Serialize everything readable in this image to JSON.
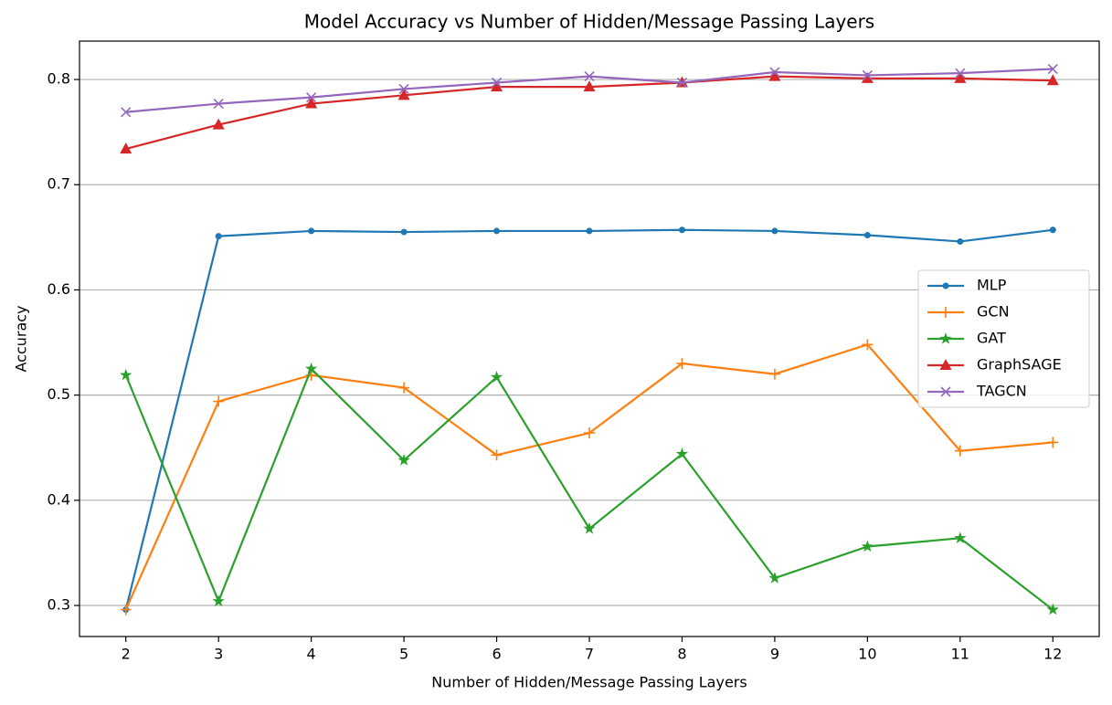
{
  "chart_data": {
    "type": "line",
    "title": "Model Accuracy vs Number of Hidden/Message Passing Layers",
    "x_label": "Number of Hidden/Message Passing Layers",
    "y_label": "Accuracy",
    "x": [
      2,
      3,
      4,
      5,
      6,
      7,
      8,
      9,
      10,
      11,
      12
    ],
    "series": [
      {
        "name": "MLP",
        "color": "#1f77b4",
        "marker": "dot",
        "values": [
          0.296,
          0.651,
          0.656,
          0.655,
          0.656,
          0.656,
          0.657,
          0.656,
          0.652,
          0.646,
          0.657
        ]
      },
      {
        "name": "GCN",
        "color": "#ff7f0e",
        "marker": "plus",
        "values": [
          0.296,
          0.494,
          0.519,
          0.507,
          0.443,
          0.464,
          0.53,
          0.52,
          0.548,
          0.447,
          0.455
        ]
      },
      {
        "name": "GAT",
        "color": "#2ca02c",
        "marker": "star",
        "values": [
          0.519,
          0.304,
          0.525,
          0.438,
          0.517,
          0.373,
          0.444,
          0.326,
          0.356,
          0.364,
          0.296
        ]
      },
      {
        "name": "GraphSAGE",
        "color": "#d62728",
        "marker": "triangle",
        "values": [
          0.734,
          0.757,
          0.777,
          0.785,
          0.793,
          0.793,
          0.797,
          0.803,
          0.801,
          0.801,
          0.799
        ]
      },
      {
        "name": "TAGCN",
        "color": "#9467bd",
        "marker": "x",
        "values": [
          0.769,
          0.777,
          0.783,
          0.791,
          0.797,
          0.803,
          0.797,
          0.807,
          0.804,
          0.806,
          0.81
        ]
      }
    ],
    "xlim": [
      1.5,
      12.5
    ],
    "xticks": [
      2,
      3,
      4,
      5,
      6,
      7,
      8,
      9,
      10,
      11,
      12
    ],
    "ylim": [
      0.2705,
      0.8365
    ],
    "yticks": [
      0.3,
      0.4,
      0.5,
      0.6,
      0.7,
      0.8
    ],
    "grid": "y",
    "legend": "center right"
  }
}
